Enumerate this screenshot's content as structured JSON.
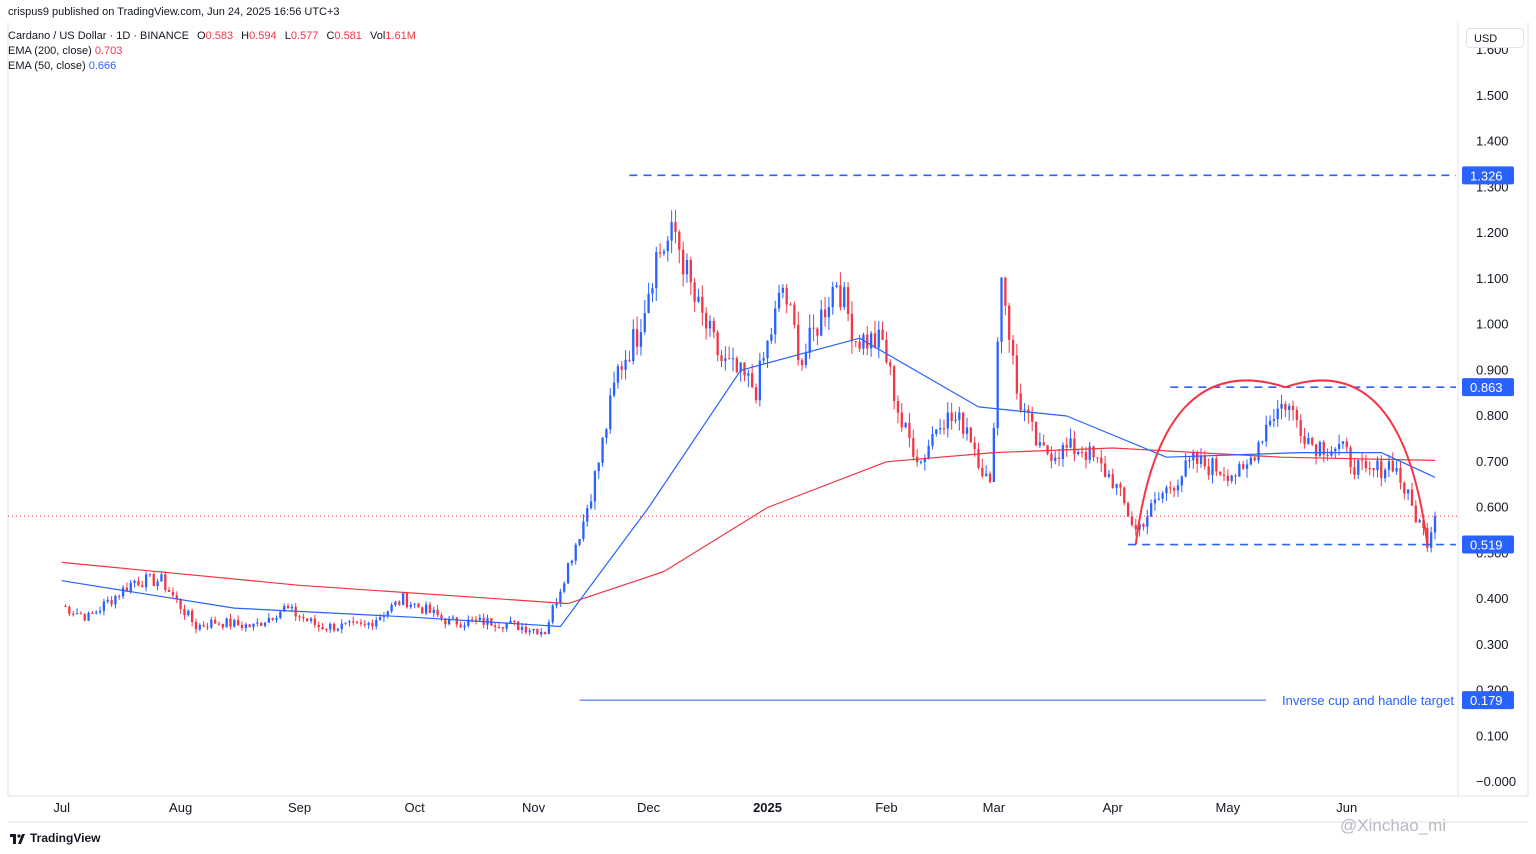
{
  "header": {
    "publisher_line": "crispus9 published on TradingView.com, Jun 24, 2025 16:56 UTC+3",
    "symbol": "Cardano / US Dollar · 1D · BINANCE",
    "ohlc": {
      "o_label": "O",
      "o_value": "0.583",
      "h_label": "H",
      "h_value": "0.594",
      "l_label": "L",
      "l_value": "0.577",
      "c_label": "C",
      "c_value": "0.581",
      "vol_label": "Vol",
      "vol_value": "1.61M"
    },
    "ema200": {
      "label": "EMA (200, close)",
      "value": "0.703"
    },
    "ema50": {
      "label": "EMA (50, close)",
      "value": "0.666"
    }
  },
  "currency": "USD",
  "branding": {
    "logo_text": "TradingView",
    "watermark": "@Xinchao_mi"
  },
  "colors": {
    "up": "#2962ff",
    "down": "#f23645",
    "ema200": "#f23645",
    "ema50": "#2962ff",
    "level": "#2962ff",
    "target": "#2962ff"
  },
  "chart_data": {
    "type": "candlestick",
    "x_ticks": [
      "Jul",
      "Aug",
      "Sep",
      "Oct",
      "Nov",
      "Dec",
      "2025",
      "Feb",
      "Mar",
      "Apr",
      "May",
      "Jun"
    ],
    "y_ticks": [
      "1.600",
      "1.500",
      "1.400",
      "1.300",
      "1.200",
      "1.100",
      "1.000",
      "0.900",
      "0.800",
      "0.700",
      "0.600",
      "0.500",
      "0.400",
      "0.300",
      "0.200",
      "0.100",
      "−0.000"
    ],
    "ylim": [
      -0.03,
      1.62
    ],
    "last_price": 0.581,
    "price_path": [
      [
        "2024-07-01",
        0.385
      ],
      [
        "2024-07-08",
        0.36
      ],
      [
        "2024-07-14",
        0.4
      ],
      [
        "2024-07-20",
        0.44
      ],
      [
        "2024-07-27",
        0.44
      ],
      [
        "2024-08-05",
        0.34
      ],
      [
        "2024-08-10",
        0.35
      ],
      [
        "2024-08-20",
        0.34
      ],
      [
        "2024-08-28",
        0.38
      ],
      [
        "2024-09-06",
        0.34
      ],
      [
        "2024-09-18",
        0.34
      ],
      [
        "2024-09-28",
        0.4
      ],
      [
        "2024-10-10",
        0.35
      ],
      [
        "2024-10-22",
        0.35
      ],
      [
        "2024-11-04",
        0.33
      ],
      [
        "2024-11-09",
        0.45
      ],
      [
        "2024-11-14",
        0.57
      ],
      [
        "2024-11-18",
        0.7
      ],
      [
        "2024-11-23",
        0.9
      ],
      [
        "2024-11-28",
        0.98
      ],
      [
        "2024-12-03",
        1.15
      ],
      [
        "2024-12-08",
        1.2
      ],
      [
        "2024-12-13",
        1.05
      ],
      [
        "2024-12-20",
        0.92
      ],
      [
        "2024-12-29",
        0.86
      ],
      [
        "2025-01-05",
        1.08
      ],
      [
        "2025-01-10",
        0.92
      ],
      [
        "2025-01-19",
        1.1
      ],
      [
        "2025-01-24",
        0.97
      ],
      [
        "2025-01-31",
        0.96
      ],
      [
        "2025-02-05",
        0.78
      ],
      [
        "2025-02-10",
        0.7
      ],
      [
        "2025-02-15",
        0.8
      ],
      [
        "2025-02-22",
        0.78
      ],
      [
        "2025-02-28",
        0.64
      ],
      [
        "2025-03-03",
        1.12
      ],
      [
        "2025-03-07",
        0.85
      ],
      [
        "2025-03-13",
        0.72
      ],
      [
        "2025-03-24",
        0.73
      ],
      [
        "2025-04-01",
        0.66
      ],
      [
        "2025-04-07",
        0.55
      ],
      [
        "2025-04-14",
        0.63
      ],
      [
        "2025-04-22",
        0.7
      ],
      [
        "2025-05-05",
        0.67
      ],
      [
        "2025-05-12",
        0.8
      ],
      [
        "2025-05-16",
        0.83
      ],
      [
        "2025-05-23",
        0.74
      ],
      [
        "2025-05-30",
        0.73
      ],
      [
        "2025-06-06",
        0.67
      ],
      [
        "2025-06-13",
        0.7
      ],
      [
        "2025-06-18",
        0.6
      ],
      [
        "2025-06-22",
        0.53
      ],
      [
        "2025-06-24",
        0.581
      ]
    ],
    "series": [
      {
        "name": "EMA (200, close)",
        "values": [
          [
            "2024-07-01",
            0.48
          ],
          [
            "2024-09-01",
            0.43
          ],
          [
            "2024-11-10",
            0.39
          ],
          [
            "2024-12-05",
            0.46
          ],
          [
            "2025-01-01",
            0.6
          ],
          [
            "2025-02-01",
            0.7
          ],
          [
            "2025-03-01",
            0.72
          ],
          [
            "2025-04-01",
            0.73
          ],
          [
            "2025-05-15",
            0.71
          ],
          [
            "2025-06-24",
            0.703
          ]
        ]
      },
      {
        "name": "EMA (50, close)",
        "values": [
          [
            "2024-07-01",
            0.44
          ],
          [
            "2024-08-15",
            0.38
          ],
          [
            "2024-10-01",
            0.36
          ],
          [
            "2024-11-08",
            0.34
          ],
          [
            "2024-12-01",
            0.6
          ],
          [
            "2024-12-25",
            0.9
          ],
          [
            "2025-01-25",
            0.97
          ],
          [
            "2025-02-25",
            0.82
          ],
          [
            "2025-03-20",
            0.8
          ],
          [
            "2025-04-15",
            0.71
          ],
          [
            "2025-05-20",
            0.72
          ],
          [
            "2025-06-10",
            0.72
          ],
          [
            "2025-06-24",
            0.666
          ]
        ]
      }
    ],
    "levels": [
      {
        "price": "1.326",
        "value": 1.326,
        "style": "dashed"
      },
      {
        "price": "0.863",
        "value": 0.863,
        "style": "dashed"
      },
      {
        "price": "0.519",
        "value": 0.519,
        "style": "dashed"
      },
      {
        "price": "0.179",
        "value": 0.179,
        "style": "solid",
        "text": "Inverse cup and handle target"
      }
    ],
    "cup_pattern": {
      "start": [
        "2025-04-07",
        0.519
      ],
      "peak": [
        "2025-05-16",
        0.863
      ],
      "end": [
        "2025-06-22",
        0.519
      ]
    }
  }
}
